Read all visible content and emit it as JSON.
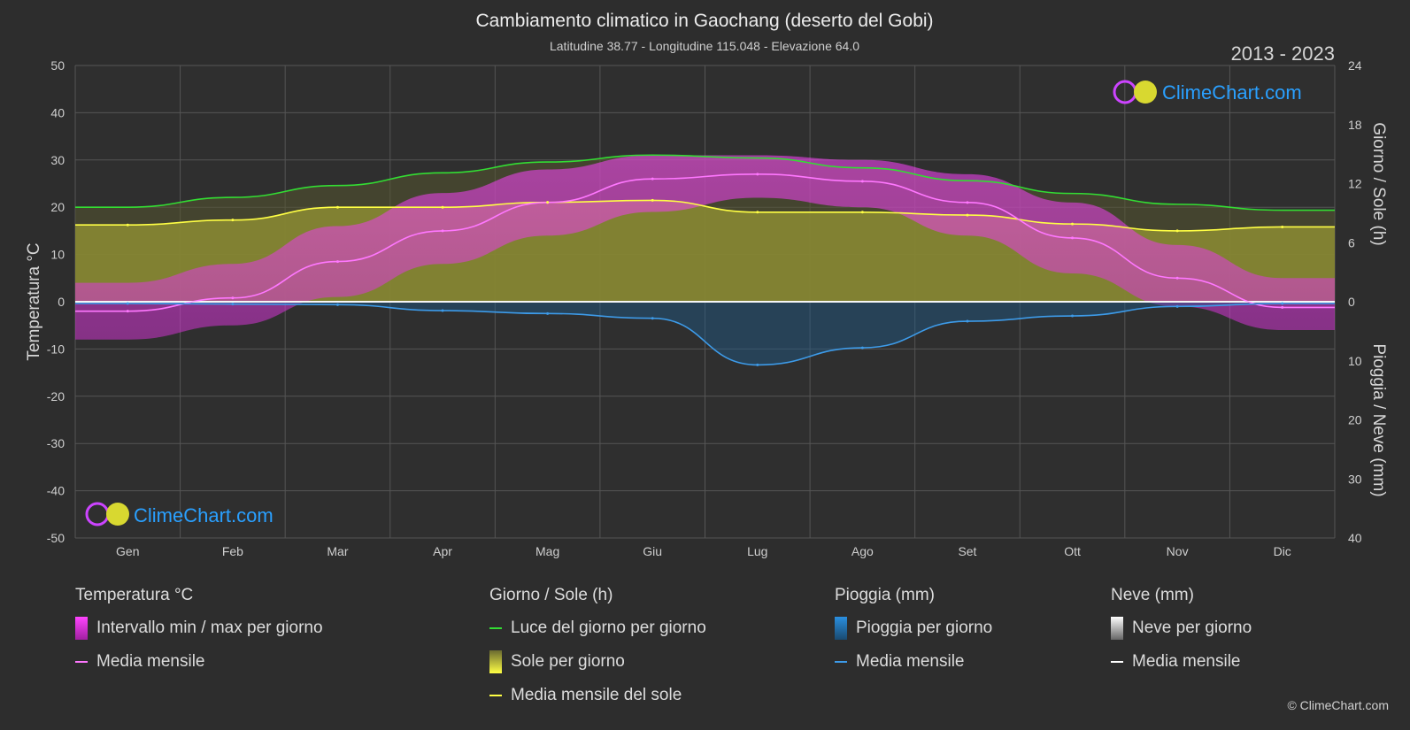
{
  "header": {
    "title": "Cambiamento climatico in Gaochang (deserto del Gobi)",
    "subtitle": "Latitudine 38.77 - Longitudine 115.048 - Elevazione 64.0",
    "year_range": "2013 - 2023"
  },
  "brand": {
    "name": "ClimeChart.com",
    "copyright": "© ClimeChart.com"
  },
  "chart_data": {
    "type": "area",
    "categories": [
      "Gen",
      "Feb",
      "Mar",
      "Apr",
      "Mag",
      "Giu",
      "Lug",
      "Ago",
      "Set",
      "Ott",
      "Nov",
      "Dic"
    ],
    "y_left": {
      "label": "Temperatura °C",
      "range": [
        -50,
        50
      ],
      "ticks": [
        50,
        40,
        30,
        20,
        10,
        0,
        -10,
        -20,
        -30,
        -40,
        -50
      ]
    },
    "y_right_top": {
      "label": "Giorno / Sole (h)",
      "range": [
        0,
        24
      ],
      "ticks": [
        24,
        18,
        12,
        6,
        0
      ]
    },
    "y_right_bottom": {
      "label": "Pioggia / Neve (mm)",
      "range": [
        0,
        40
      ],
      "ticks": [
        0,
        10,
        20,
        30,
        40
      ]
    },
    "grid": true,
    "series": [
      {
        "name": "Luce del giorno per giorno",
        "axis": "hours",
        "values": [
          9.6,
          10.6,
          11.8,
          13.1,
          14.2,
          14.9,
          14.6,
          13.6,
          12.3,
          11.0,
          9.9,
          9.3
        ]
      },
      {
        "name": "Media mensile del sole",
        "axis": "hours",
        "values": [
          7.8,
          8.3,
          9.6,
          9.6,
          10.1,
          10.3,
          9.1,
          9.1,
          8.8,
          7.9,
          7.2,
          7.6
        ]
      },
      {
        "name": "Media mensile (temperatura)",
        "axis": "temp",
        "values": [
          -2.0,
          0.8,
          8.5,
          15.0,
          21.0,
          26.0,
          27.0,
          25.5,
          21.0,
          13.5,
          5.0,
          -1.2
        ]
      },
      {
        "name": "Intervallo min / max per giorno",
        "axis": "temp",
        "min": [
          -8,
          -5,
          1,
          8,
          14,
          19,
          22,
          20,
          14,
          6,
          -1,
          -6
        ],
        "max": [
          4,
          8,
          16,
          23,
          28,
          31,
          31,
          30,
          27,
          21,
          12,
          5
        ]
      },
      {
        "name": "Media mensile (pioggia)",
        "axis": "precip",
        "values": [
          0.3,
          0.4,
          0.5,
          1.5,
          2.0,
          2.8,
          10.7,
          7.8,
          3.3,
          2.4,
          0.8,
          0.3
        ]
      },
      {
        "name": "Media mensile (neve)",
        "axis": "precip",
        "values": [
          0,
          0,
          0,
          0,
          0,
          0,
          0,
          0,
          0,
          0,
          0,
          0
        ]
      }
    ]
  },
  "legend": {
    "temperature": {
      "title": "Temperatura °C",
      "range_label": "Intervallo min / max per giorno",
      "mean_label": "Media mensile",
      "range_color": "#e020e0",
      "mean_color": "#ff77ff"
    },
    "sun": {
      "title": "Giorno / Sole (h)",
      "daylight_label": "Luce del giorno per giorno",
      "sun_label": "Sole per giorno",
      "sun_mean_label": "Media mensile del sole",
      "daylight_color": "#33dd33",
      "sun_color": "#e8e83a",
      "sun_mean_color": "#ffff44"
    },
    "rain": {
      "title": "Pioggia (mm)",
      "rain_label": "Pioggia per giorno",
      "mean_label": "Media mensile",
      "rain_color": "#2a8fe0",
      "mean_color": "#3d9be9"
    },
    "snow": {
      "title": "Neve (mm)",
      "snow_label": "Neve per giorno",
      "mean_label": "Media mensile",
      "snow_color": "#e6e6e6",
      "mean_color": "#ffffff"
    }
  }
}
